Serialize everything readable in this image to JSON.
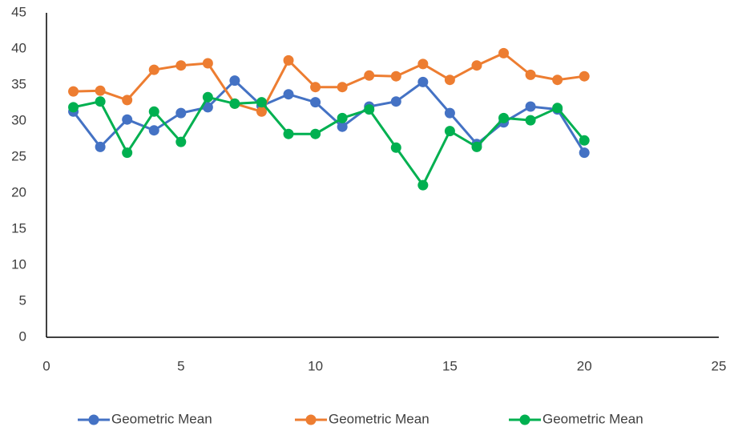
{
  "chart_data": {
    "type": "line",
    "x": [
      1,
      2,
      3,
      4,
      5,
      6,
      7,
      8,
      9,
      10,
      11,
      12,
      13,
      14,
      15,
      16,
      17,
      18,
      19,
      20
    ],
    "series": [
      {
        "name": "Geometric Mean",
        "color": "#4472c4",
        "values": [
          31.3,
          26.4,
          30.2,
          28.7,
          31.1,
          31.9,
          35.6,
          32.1,
          33.7,
          32.6,
          29.2,
          32.0,
          32.7,
          35.4,
          31.1,
          26.8,
          29.8,
          32.0,
          31.6,
          25.6
        ]
      },
      {
        "name": "Geometric Mean",
        "color": "#ed7d31",
        "values": [
          34.1,
          34.2,
          32.9,
          37.1,
          37.7,
          38.0,
          32.4,
          31.3,
          38.4,
          34.7,
          34.7,
          36.3,
          36.2,
          37.9,
          35.7,
          37.7,
          39.4,
          36.4,
          35.7,
          36.2
        ]
      },
      {
        "name": "Geometric Mean",
        "color": "#00b050",
        "values": [
          31.9,
          32.7,
          25.6,
          31.3,
          27.1,
          33.3,
          32.4,
          32.6,
          28.2,
          28.2,
          30.4,
          31.6,
          26.3,
          21.1,
          28.6,
          26.4,
          30.4,
          30.1,
          31.8,
          27.3
        ]
      }
    ],
    "xlim": [
      0,
      25
    ],
    "xticks": [
      0,
      5,
      10,
      15,
      20,
      25
    ],
    "ylim": [
      0,
      45
    ],
    "yticks": [
      0,
      5,
      10,
      15,
      20,
      25,
      30,
      35,
      40,
      45
    ],
    "grid": false,
    "legend": "bottom"
  }
}
